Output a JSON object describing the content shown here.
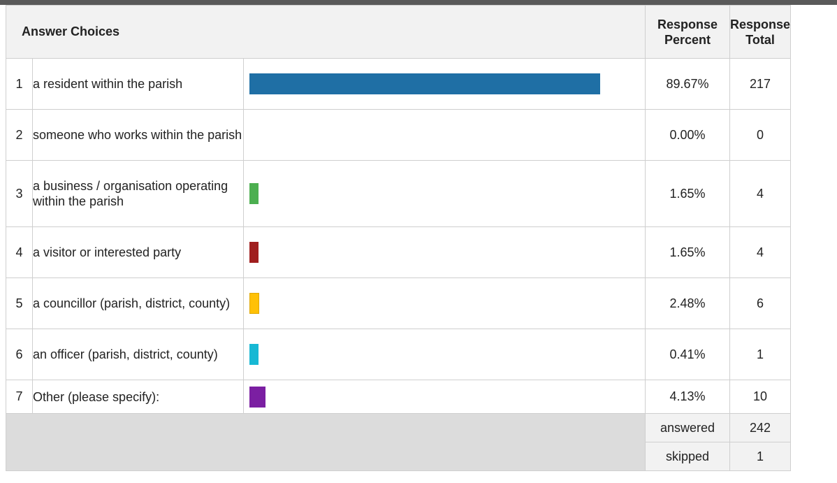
{
  "header": {
    "answer_choices": "Answer Choices",
    "response_percent_line1": "Response",
    "response_percent_line2": "Percent",
    "response_total_line1": "Response",
    "response_total_line2": "Total"
  },
  "chart_data": {
    "type": "bar",
    "title": "",
    "categories": [
      "a resident within the parish",
      "someone who works within the parish",
      "a business / organisation operating within the parish",
      "a visitor or interested party",
      "a councillor (parish, district, county)",
      "an officer (parish, district, county)",
      "Other (please specify):"
    ],
    "series": [
      {
        "values": [
          89.67,
          0.0,
          1.65,
          1.65,
          2.48,
          0.41,
          4.13
        ]
      }
    ],
    "colors": [
      "#1f6fa5",
      "#1f6fa5",
      "#4caf50",
      "#a01e1e",
      "#ffc107",
      "#17b8d4",
      "#7b1fa2"
    ],
    "ylim": [
      0,
      100
    ]
  },
  "rows": [
    {
      "num": "1",
      "label": "a resident within the parish",
      "percent": "89.67%",
      "total": "217"
    },
    {
      "num": "2",
      "label": "someone who works within the parish",
      "percent": "0.00%",
      "total": "0"
    },
    {
      "num": "3",
      "label": "a business / organisation operating within the parish",
      "percent": "1.65%",
      "total": "4"
    },
    {
      "num": "4",
      "label": "a visitor or interested party",
      "percent": "1.65%",
      "total": "4"
    },
    {
      "num": "5",
      "label": "a councillor (parish, district, county)",
      "percent": "2.48%",
      "total": "6"
    },
    {
      "num": "6",
      "label": "an officer (parish, district, county)",
      "percent": "0.41%",
      "total": "1"
    },
    {
      "num": "7",
      "label": "Other (please specify):",
      "percent": "4.13%",
      "total": "10"
    }
  ],
  "footer": {
    "answered_label": "answered",
    "answered_value": "242",
    "skipped_label": "skipped",
    "skipped_value": "1"
  }
}
